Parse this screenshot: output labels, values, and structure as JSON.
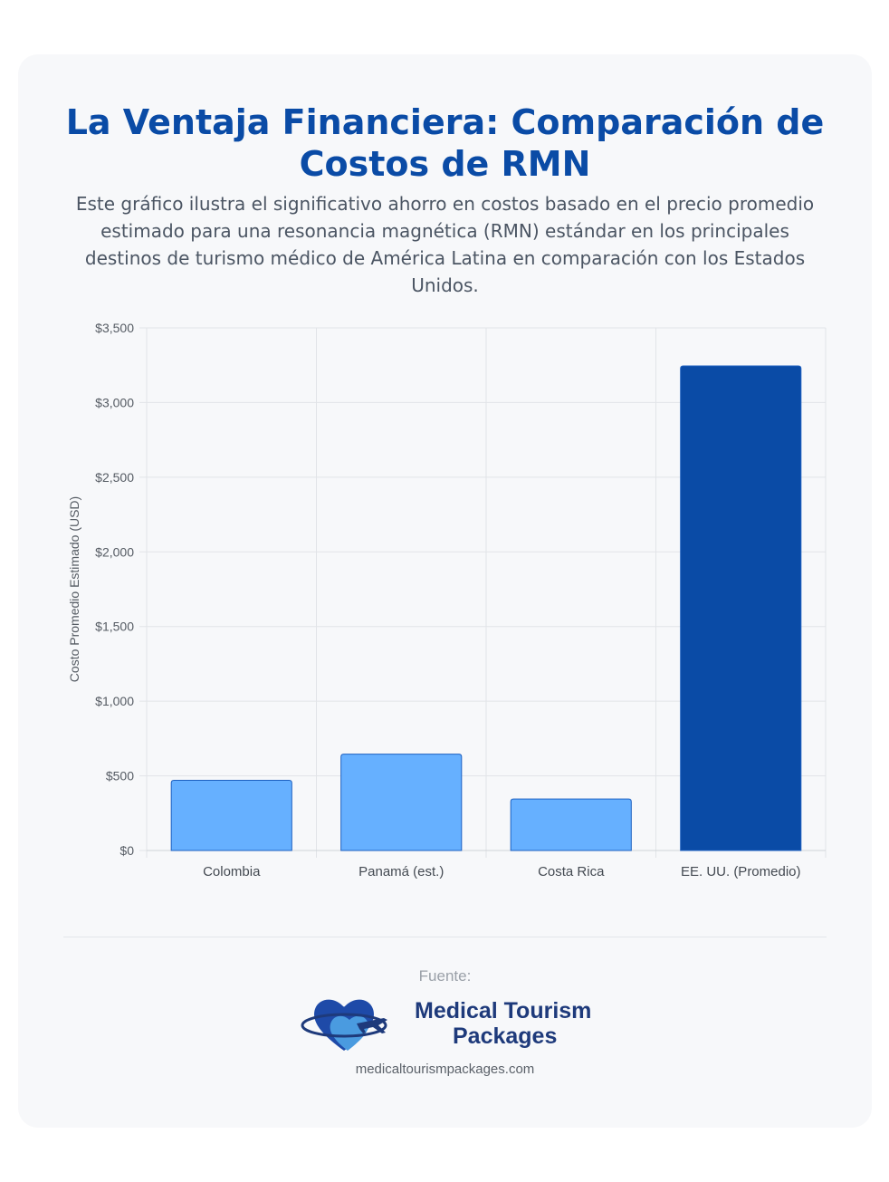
{
  "header": {
    "title": "La Ventaja Financiera: Comparación de Costos de RMN",
    "subtitle": "Este gráfico ilustra el significativo ahorro en costos basado en el precio promedio estimado para una resonancia magnética (RMN) estándar en los principales destinos de turismo médico de América Latina en comparación con los Estados Unidos."
  },
  "chart_data": {
    "type": "bar",
    "categories": [
      "Colombia",
      "Panamá (est.)",
      "Costa Rica",
      "EE. UU. (Promedio)"
    ],
    "values": [
      470,
      645,
      345,
      3245
    ],
    "ylabel": "Costo Promedio Estimado (USD)",
    "xlabel": "",
    "ylim": [
      0,
      3500
    ],
    "yticks": [
      0,
      500,
      1000,
      1500,
      2000,
      2500,
      3000,
      3500
    ],
    "ytick_labels": [
      "$0",
      "$500",
      "$1,000",
      "$1,500",
      "$2,000",
      "$2,500",
      "$3,000",
      "$3,500"
    ],
    "grid": true,
    "colors": [
      "#66b0ff",
      "#66b0ff",
      "#66b0ff",
      "#0a4ba6"
    ],
    "border_colors": [
      "#1c5fc0",
      "#1c5fc0",
      "#1c5fc0",
      "#1c5fc0"
    ]
  },
  "footer": {
    "source_label": "Fuente:",
    "logo_line1": "Medical Tourism",
    "logo_line2": "Packages",
    "website": "medicaltourismpackages.com"
  },
  "colors": {
    "title": "#0a4ba6",
    "logo_text": "#1e3a7b",
    "heart_dark": "#1e4aa8",
    "heart_light": "#4a9be0"
  }
}
